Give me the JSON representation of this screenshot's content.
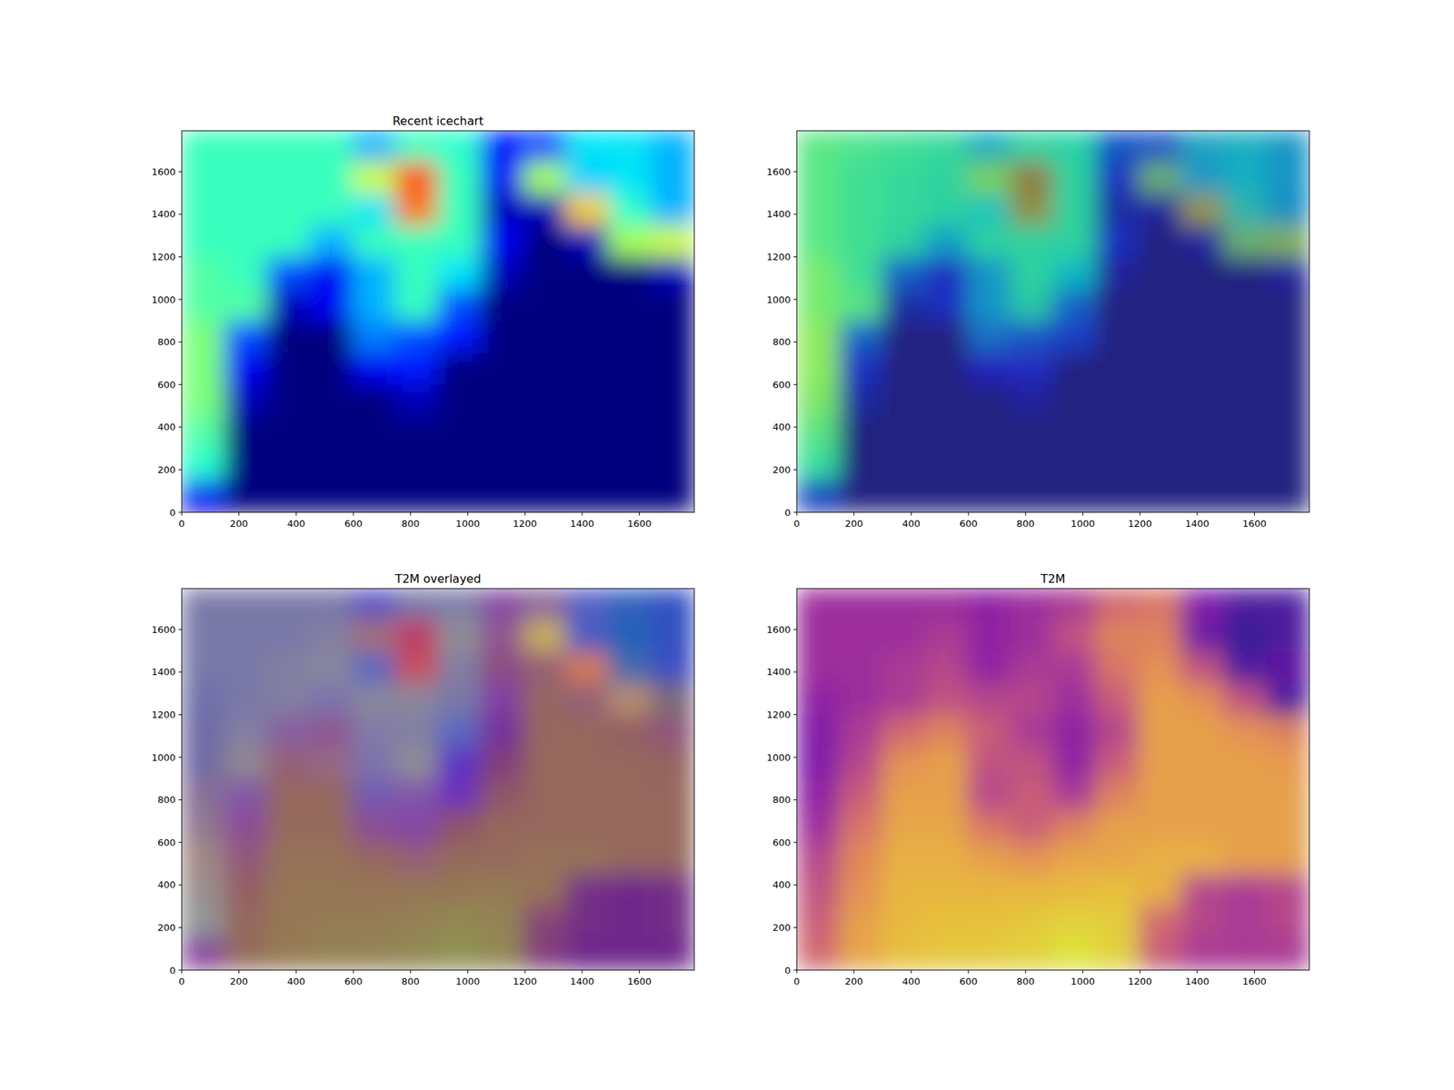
{
  "chart_data": [
    {
      "type": "heatmap",
      "title": "Recent icechart",
      "color": "jet",
      "value_range": [
        0,
        1
      ],
      "xlim": [
        0,
        1792
      ],
      "ylim": [
        0,
        1792
      ],
      "xticks": [
        0,
        200,
        400,
        600,
        800,
        1000,
        1200,
        1400,
        1600
      ],
      "yticks": [
        0,
        200,
        400,
        600,
        800,
        1000,
        1200,
        1400,
        1600
      ],
      "values": [
        [
          0.42,
          0.42,
          0.42,
          0.42,
          0.3,
          0.42,
          0.4,
          0.15,
          0.2,
          0.35,
          0.35,
          0.3
        ],
        [
          0.42,
          0.42,
          0.42,
          0.42,
          0.6,
          0.85,
          0.42,
          0.1,
          0.55,
          0.33,
          0.35,
          0.3
        ],
        [
          0.42,
          0.42,
          0.42,
          0.42,
          0.35,
          0.8,
          0.42,
          0.05,
          0.05,
          0.7,
          0.4,
          0.3
        ],
        [
          0.42,
          0.42,
          0.42,
          0.3,
          0.42,
          0.42,
          0.42,
          0.1,
          0,
          0.05,
          0.55,
          0.6
        ],
        [
          0.45,
          0.42,
          0.2,
          0.1,
          0.3,
          0.42,
          0.35,
          0.05,
          0,
          0,
          0,
          0.05
        ],
        [
          0.45,
          0.45,
          0.05,
          0.1,
          0.3,
          0.42,
          0.2,
          0,
          0,
          0,
          0,
          0
        ],
        [
          0.5,
          0.2,
          0,
          0,
          0.25,
          0.2,
          0.15,
          0,
          0,
          0,
          0,
          0
        ],
        [
          0.5,
          0.1,
          0,
          0,
          0.1,
          0.15,
          0,
          0,
          0,
          0,
          0,
          0
        ],
        [
          0.5,
          0.05,
          0,
          0,
          0,
          0.05,
          0,
          0,
          0,
          0,
          0,
          0
        ],
        [
          0.45,
          0,
          0,
          0,
          0,
          0,
          0,
          0,
          0,
          0,
          0,
          0
        ],
        [
          0.4,
          0,
          0,
          0,
          0,
          0,
          0,
          0,
          0,
          0,
          0,
          0
        ],
        [
          0.1,
          0,
          0,
          0,
          0,
          0,
          0,
          0,
          0,
          0,
          0,
          0
        ]
      ]
    },
    {
      "type": "heatmap",
      "color": "jet",
      "value_range": [
        0,
        1
      ],
      "xlim": [
        0,
        1792
      ],
      "ylim": [
        0,
        1792
      ],
      "xticks": [
        0,
        200,
        400,
        600,
        800,
        1000,
        1200,
        1400,
        1600
      ],
      "yticks": [
        0,
        200,
        400,
        600,
        800,
        1000,
        1200,
        1400,
        1600
      ],
      "values": [
        [
          0.42,
          0.42,
          0.42,
          0.42,
          0.3,
          0.42,
          0.4,
          0.15,
          0.2,
          0.35,
          0.35,
          0.3
        ],
        [
          0.42,
          0.42,
          0.42,
          0.42,
          0.6,
          0.85,
          0.42,
          0.1,
          0.55,
          0.33,
          0.35,
          0.3
        ],
        [
          0.42,
          0.42,
          0.42,
          0.42,
          0.35,
          0.8,
          0.42,
          0.05,
          0.05,
          0.7,
          0.4,
          0.3
        ],
        [
          0.42,
          0.42,
          0.42,
          0.3,
          0.42,
          0.42,
          0.42,
          0.1,
          0,
          0.05,
          0.55,
          0.6
        ],
        [
          0.45,
          0.42,
          0.2,
          0.1,
          0.3,
          0.42,
          0.35,
          0.05,
          0,
          0,
          0,
          0.05
        ],
        [
          0.45,
          0.45,
          0.05,
          0.1,
          0.3,
          0.42,
          0.2,
          0,
          0,
          0,
          0,
          0
        ],
        [
          0.5,
          0.2,
          0,
          0,
          0.25,
          0.2,
          0.15,
          0,
          0,
          0,
          0,
          0
        ],
        [
          0.5,
          0.1,
          0,
          0,
          0.1,
          0.15,
          0,
          0,
          0,
          0,
          0,
          0
        ],
        [
          0.5,
          0.05,
          0,
          0,
          0,
          0.05,
          0,
          0,
          0,
          0,
          0,
          0
        ],
        [
          0.45,
          0,
          0,
          0,
          0,
          0,
          0,
          0,
          0,
          0,
          0,
          0
        ],
        [
          0.4,
          0,
          0,
          0,
          0,
          0,
          0,
          0,
          0,
          0,
          0,
          0
        ],
        [
          0.1,
          0,
          0,
          0,
          0,
          0,
          0,
          0,
          0,
          0,
          0,
          0
        ]
      ],
      "overlay": {
        "color": "viridis",
        "value_range": [
          0,
          1
        ],
        "values": [
          [
            0.8,
            0.75,
            0.7,
            0.65,
            0.6,
            0.6,
            0.6,
            0.5,
            0.3,
            0.3,
            0.4,
            0.4
          ],
          [
            0.8,
            0.7,
            0.65,
            0.6,
            0.6,
            0.6,
            0.6,
            0.3,
            0.3,
            0.3,
            0.4,
            0.4
          ],
          [
            0.8,
            0.7,
            0.65,
            0.6,
            0.6,
            0.6,
            0.6,
            0.3,
            0.2,
            0.3,
            0.35,
            0.35
          ],
          [
            0.8,
            0.7,
            0.6,
            0.5,
            0.6,
            0.6,
            0.6,
            0.3,
            0.2,
            0.2,
            0.3,
            0.3
          ],
          [
            0.85,
            0.7,
            0.4,
            0.3,
            0.4,
            0.6,
            0.5,
            0.2,
            0.2,
            0.2,
            0.2,
            0.2
          ],
          [
            0.85,
            0.75,
            0.3,
            0.3,
            0.4,
            0.5,
            0.4,
            0.2,
            0.2,
            0.2,
            0.2,
            0.2
          ],
          [
            0.85,
            0.4,
            0.2,
            0.2,
            0.3,
            0.3,
            0.3,
            0.2,
            0.2,
            0.2,
            0.2,
            0.2
          ],
          [
            0.85,
            0.3,
            0.2,
            0.2,
            0.2,
            0.2,
            0.2,
            0.2,
            0.2,
            0.2,
            0.2,
            0.2
          ],
          [
            0.8,
            0.25,
            0.2,
            0.2,
            0.2,
            0.2,
            0.2,
            0.2,
            0.2,
            0.2,
            0.2,
            0.2
          ],
          [
            0.75,
            0.2,
            0.2,
            0.2,
            0.2,
            0.2,
            0.2,
            0.2,
            0.2,
            0.2,
            0.2,
            0.2
          ],
          [
            0.7,
            0.2,
            0.2,
            0.2,
            0.2,
            0.2,
            0.2,
            0.2,
            0.2,
            0.2,
            0.2,
            0.2
          ],
          [
            0.4,
            0.2,
            0.2,
            0.2,
            0.2,
            0.2,
            0.2,
            0.2,
            0.2,
            0.2,
            0.2,
            0.2
          ]
        ]
      }
    },
    {
      "type": "heatmap",
      "title": "T2M overlayed",
      "color": "plasma",
      "value_range": [
        0,
        1
      ],
      "xlim": [
        0,
        1792
      ],
      "ylim": [
        0,
        1792
      ],
      "xticks": [
        0,
        200,
        400,
        600,
        800,
        1000,
        1200,
        1400,
        1600
      ],
      "yticks": [
        0,
        200,
        400,
        600,
        800,
        1000,
        1200,
        1400,
        1600
      ],
      "values": [
        [
          0.35,
          0.35,
          0.35,
          0.35,
          0.3,
          0.35,
          0.4,
          0.6,
          0.65,
          0.25,
          0.1,
          0.1
        ],
        [
          0.35,
          0.35,
          0.35,
          0.4,
          0.3,
          0.35,
          0.5,
          0.7,
          0.7,
          0.2,
          0.05,
          0.1
        ],
        [
          0.35,
          0.35,
          0.4,
          0.45,
          0.3,
          0.4,
          0.4,
          0.65,
          0.75,
          0.5,
          0.1,
          0.15
        ],
        [
          0.3,
          0.35,
          0.4,
          0.5,
          0.45,
          0.45,
          0.35,
          0.55,
          0.8,
          0.75,
          0.5,
          0.1
        ],
        [
          0.25,
          0.4,
          0.6,
          0.7,
          0.55,
          0.4,
          0.3,
          0.45,
          0.8,
          0.8,
          0.75,
          0.7
        ],
        [
          0.25,
          0.45,
          0.75,
          0.8,
          0.5,
          0.5,
          0.3,
          0.55,
          0.8,
          0.8,
          0.8,
          0.78
        ],
        [
          0.3,
          0.55,
          0.8,
          0.8,
          0.45,
          0.55,
          0.4,
          0.7,
          0.8,
          0.8,
          0.8,
          0.8
        ],
        [
          0.35,
          0.65,
          0.82,
          0.82,
          0.65,
          0.55,
          0.7,
          0.8,
          0.8,
          0.8,
          0.8,
          0.8
        ],
        [
          0.45,
          0.72,
          0.85,
          0.85,
          0.8,
          0.75,
          0.82,
          0.82,
          0.85,
          0.85,
          0.8,
          0.8
        ],
        [
          0.5,
          0.75,
          0.87,
          0.87,
          0.87,
          0.87,
          0.88,
          0.9,
          0.85,
          0.45,
          0.4,
          0.45
        ],
        [
          0.55,
          0.8,
          0.88,
          0.9,
          0.9,
          0.92,
          0.95,
          0.93,
          0.6,
          0.45,
          0.4,
          0.45
        ],
        [
          0.6,
          0.82,
          0.9,
          0.92,
          0.93,
          0.95,
          1.0,
          0.95,
          0.55,
          0.4,
          0.4,
          0.4
        ]
      ],
      "overlay": {
        "color": "jet",
        "value_range": [
          0,
          1
        ],
        "values": [
          [
            0.42,
            0.42,
            0.42,
            0.42,
            0.3,
            0.42,
            0.4,
            0.15,
            0.2,
            0.35,
            0.35,
            0.3
          ],
          [
            0.42,
            0.42,
            0.42,
            0.42,
            0.6,
            0.85,
            0.42,
            0.1,
            0.55,
            0.33,
            0.35,
            0.3
          ],
          [
            0.42,
            0.42,
            0.42,
            0.42,
            0.35,
            0.8,
            0.42,
            0.05,
            0.05,
            0.7,
            0.4,
            0.3
          ],
          [
            0.42,
            0.42,
            0.42,
            0.3,
            0.42,
            0.42,
            0.42,
            0.1,
            0,
            0.05,
            0.55,
            0.6
          ],
          [
            0.45,
            0.42,
            0.2,
            0.1,
            0.3,
            0.42,
            0.35,
            0.05,
            0,
            0,
            0,
            0.05
          ],
          [
            0.45,
            0.45,
            0.05,
            0.1,
            0.3,
            0.42,
            0.2,
            0,
            0,
            0,
            0,
            0
          ],
          [
            0.5,
            0.2,
            0,
            0,
            0.25,
            0.2,
            0.15,
            0,
            0,
            0,
            0,
            0
          ],
          [
            0.5,
            0.1,
            0,
            0,
            0.1,
            0.15,
            0,
            0,
            0,
            0,
            0,
            0
          ],
          [
            0.5,
            0.05,
            0,
            0,
            0,
            0.05,
            0,
            0,
            0,
            0,
            0,
            0
          ],
          [
            0.45,
            0,
            0,
            0,
            0,
            0,
            0,
            0,
            0,
            0,
            0,
            0
          ],
          [
            0.4,
            0,
            0,
            0,
            0,
            0,
            0,
            0,
            0,
            0,
            0,
            0
          ],
          [
            0.1,
            0,
            0,
            0,
            0,
            0,
            0,
            0,
            0,
            0,
            0,
            0
          ]
        ]
      }
    },
    {
      "type": "heatmap",
      "title": "T2M",
      "color": "plasma",
      "value_range": [
        0,
        1
      ],
      "xlim": [
        0,
        1792
      ],
      "ylim": [
        0,
        1792
      ],
      "xticks": [
        0,
        200,
        400,
        600,
        800,
        1000,
        1200,
        1400,
        1600
      ],
      "yticks": [
        0,
        200,
        400,
        600,
        800,
        1000,
        1200,
        1400,
        1600
      ],
      "values": [
        [
          0.35,
          0.35,
          0.35,
          0.35,
          0.3,
          0.35,
          0.4,
          0.6,
          0.65,
          0.25,
          0.1,
          0.1
        ],
        [
          0.35,
          0.35,
          0.35,
          0.4,
          0.3,
          0.35,
          0.5,
          0.7,
          0.7,
          0.2,
          0.05,
          0.1
        ],
        [
          0.35,
          0.35,
          0.4,
          0.45,
          0.3,
          0.4,
          0.4,
          0.65,
          0.75,
          0.5,
          0.1,
          0.15
        ],
        [
          0.3,
          0.35,
          0.4,
          0.5,
          0.45,
          0.45,
          0.35,
          0.55,
          0.8,
          0.75,
          0.5,
          0.1
        ],
        [
          0.25,
          0.4,
          0.6,
          0.7,
          0.55,
          0.4,
          0.3,
          0.45,
          0.8,
          0.8,
          0.75,
          0.7
        ],
        [
          0.25,
          0.45,
          0.75,
          0.8,
          0.5,
          0.5,
          0.3,
          0.55,
          0.8,
          0.8,
          0.8,
          0.78
        ],
        [
          0.3,
          0.55,
          0.8,
          0.8,
          0.45,
          0.55,
          0.4,
          0.7,
          0.8,
          0.8,
          0.8,
          0.8
        ],
        [
          0.35,
          0.65,
          0.82,
          0.82,
          0.65,
          0.55,
          0.7,
          0.8,
          0.8,
          0.8,
          0.8,
          0.8
        ],
        [
          0.45,
          0.72,
          0.85,
          0.85,
          0.8,
          0.75,
          0.82,
          0.82,
          0.85,
          0.85,
          0.8,
          0.8
        ],
        [
          0.5,
          0.75,
          0.87,
          0.87,
          0.87,
          0.87,
          0.88,
          0.9,
          0.85,
          0.45,
          0.4,
          0.45
        ],
        [
          0.55,
          0.8,
          0.88,
          0.9,
          0.9,
          0.92,
          0.95,
          0.93,
          0.6,
          0.45,
          0.4,
          0.45
        ],
        [
          0.6,
          0.82,
          0.9,
          0.92,
          0.93,
          0.95,
          1.0,
          0.95,
          0.55,
          0.4,
          0.4,
          0.4
        ]
      ]
    }
  ]
}
